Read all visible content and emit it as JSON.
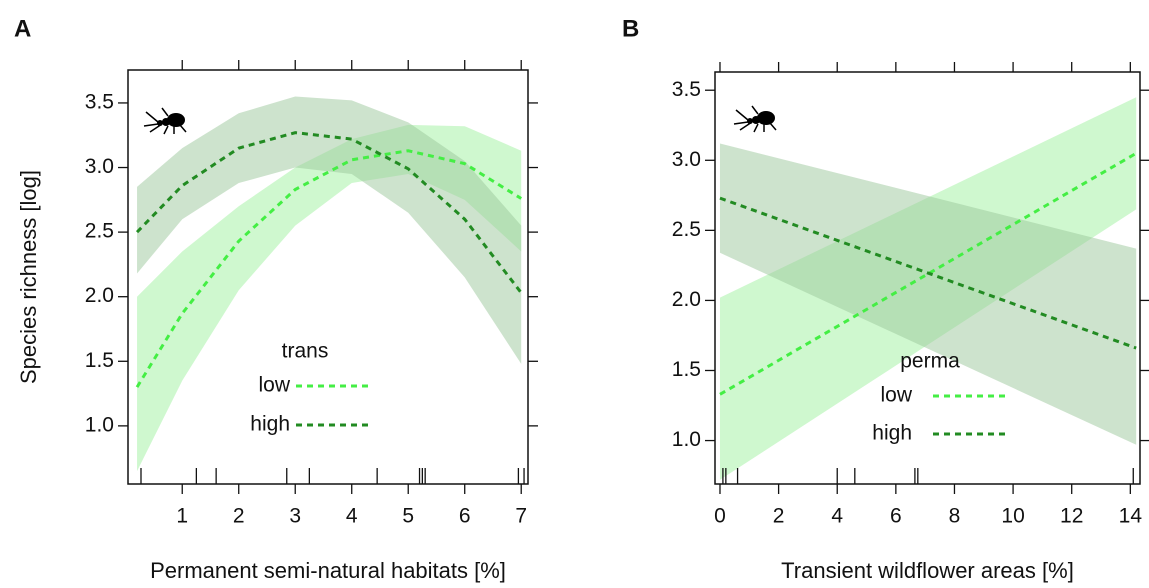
{
  "chart_data": [
    {
      "type": "line",
      "panel_label": "A",
      "xlabel": "Permanent semi-natural habitats [%]",
      "ylabel": "Species richness [log]",
      "legend_title": "trans",
      "x": [
        0.2,
        1,
        2,
        3,
        4,
        5,
        6,
        7
      ],
      "series": [
        {
          "name": "low",
          "color": "#44ee44",
          "band_color": "#9ff29f",
          "values": [
            1.3,
            1.87,
            2.43,
            2.83,
            3.06,
            3.13,
            3.03,
            2.76
          ],
          "lower": [
            0.65,
            1.35,
            2.05,
            2.55,
            2.88,
            2.95,
            2.75,
            2.35
          ],
          "upper": [
            2.0,
            2.35,
            2.7,
            3.0,
            3.22,
            3.33,
            3.32,
            3.13
          ]
        },
        {
          "name": "high",
          "color": "#228b22",
          "band_color": "#9cc89c",
          "values": [
            2.5,
            2.86,
            3.15,
            3.27,
            3.22,
            2.99,
            2.6,
            2.03
          ],
          "lower": [
            2.18,
            2.6,
            2.88,
            3.0,
            2.95,
            2.65,
            2.15,
            1.48
          ],
          "upper": [
            2.85,
            3.15,
            3.42,
            3.55,
            3.52,
            3.35,
            3.05,
            2.55
          ]
        }
      ],
      "rug": [
        0.27,
        1.25,
        1.6,
        2.85,
        3.25,
        4.45,
        5.2,
        5.25,
        5.3,
        6.95,
        7.05
      ],
      "xlim": [
        0.04,
        7.12
      ],
      "xticks": [
        1,
        2,
        3,
        4,
        5,
        6,
        7
      ],
      "ylim": [
        0.55,
        3.755
      ],
      "yticks": [
        {
          "value": 1.0,
          "label": "1.0"
        },
        1.5,
        {
          "value": 2.0,
          "label": "2.0"
        },
        2.5,
        {
          "value": 3.0,
          "label": "3.0"
        },
        3.5
      ]
    },
    {
      "type": "line",
      "panel_label": "B",
      "xlabel": "Transient wildflower areas [%]",
      "legend_title": "perma",
      "x": [
        0,
        14.2
      ],
      "series": [
        {
          "name": "low",
          "color": "#44ee44",
          "band_color": "#9ff29f",
          "values": [
            1.33,
            3.05
          ],
          "lower": [
            0.72,
            2.65
          ],
          "upper": [
            2.02,
            3.45
          ]
        },
        {
          "name": "high",
          "color": "#228b22",
          "band_color": "#9cc89c",
          "values": [
            2.73,
            1.66
          ],
          "lower": [
            2.34,
            0.97
          ],
          "upper": [
            3.12,
            2.37
          ]
        }
      ],
      "rug": [
        0.1,
        0.2,
        0.6,
        4.0,
        4.6,
        6.65,
        6.75,
        14.1
      ],
      "xlim": [
        -0.17,
        14.33
      ],
      "xticks": [
        0,
        2,
        4,
        6,
        8,
        10,
        12,
        14
      ],
      "ylim": [
        0.69,
        3.63
      ],
      "yticks": [
        {
          "value": 1.0,
          "label": "1.0"
        },
        1.5,
        {
          "value": 2.0,
          "label": "2.0"
        },
        2.5,
        {
          "value": 3.0,
          "label": "3.0"
        },
        3.5
      ]
    }
  ]
}
